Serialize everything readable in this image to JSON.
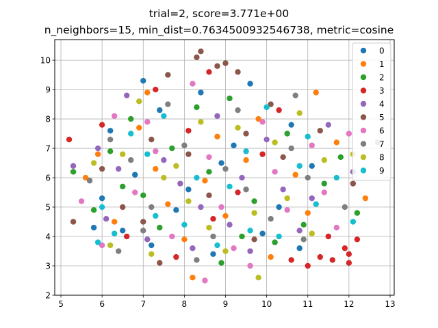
{
  "title_line1": "trial=2, score=3.771e+00",
  "title_line2": "n_neighbors=15, min_dist=0.7634500932546738, metric=cosine",
  "chart_data": {
    "type": "scatter",
    "title": "trial=2, score=3.771e+00\nn_neighbors=15, min_dist=0.7634500932546738, metric=cosine",
    "xlabel": "",
    "ylabel": "",
    "xlim": [
      4.85,
      13.1
    ],
    "ylim": [
      2.0,
      10.7
    ],
    "xticks": [
      5,
      6,
      7,
      8,
      9,
      10,
      11,
      12,
      13
    ],
    "yticks": [
      2,
      3,
      4,
      5,
      6,
      7,
      8,
      9,
      10
    ],
    "grid": true,
    "legend_position": "top-right",
    "series": [
      {
        "name": "0",
        "color": "#1f77b4",
        "points": [
          [
            7.0,
            9.3
          ],
          [
            6.2,
            7.6
          ],
          [
            5.8,
            4.3
          ],
          [
            6.5,
            4.2
          ],
          [
            7.4,
            8.3
          ],
          [
            8.1,
            5.6
          ],
          [
            9.6,
            9.2
          ],
          [
            10.3,
            5.0
          ],
          [
            6.8,
            6.1
          ],
          [
            8.7,
            3.4
          ],
          [
            10.8,
            3.6
          ],
          [
            9.2,
            7.1
          ],
          [
            7.8,
            4.9
          ],
          [
            6.0,
            5.3
          ],
          [
            11.1,
            6.4
          ],
          [
            8.4,
            8.9
          ],
          [
            9.9,
            4.1
          ],
          [
            7.2,
            3.7
          ],
          [
            10.6,
            7.8
          ],
          [
            8.9,
            6.5
          ]
        ]
      },
      {
        "name": "1",
        "color": "#ff7f0e",
        "points": [
          [
            11.2,
            8.9
          ],
          [
            12.4,
            5.3
          ],
          [
            5.6,
            6.0
          ],
          [
            8.2,
            2.6
          ],
          [
            7.1,
            8.9
          ],
          [
            9.5,
            6.6
          ],
          [
            6.3,
            4.5
          ],
          [
            10.1,
            3.3
          ],
          [
            8.8,
            7.4
          ],
          [
            7.6,
            5.1
          ],
          [
            11.7,
            7.2
          ],
          [
            6.9,
            7.7
          ],
          [
            9.0,
            4.7
          ],
          [
            10.7,
            6.1
          ],
          [
            8.0,
            3.9
          ],
          [
            5.9,
            6.8
          ],
          [
            9.8,
            8.0
          ],
          [
            7.3,
            6.3
          ],
          [
            11.0,
            4.8
          ],
          [
            8.5,
            5.9
          ]
        ]
      },
      {
        "name": "2",
        "color": "#2ca02c",
        "points": [
          [
            5.3,
            6.2
          ],
          [
            12.2,
            4.8
          ],
          [
            6.7,
            8.0
          ],
          [
            8.3,
            8.4
          ],
          [
            9.4,
            4.0
          ],
          [
            10.5,
            7.5
          ],
          [
            7.0,
            5.4
          ],
          [
            11.4,
            5.8
          ],
          [
            8.9,
            3.1
          ],
          [
            6.2,
            6.9
          ],
          [
            9.7,
            5.2
          ],
          [
            7.7,
            7.0
          ],
          [
            10.2,
            3.8
          ],
          [
            5.8,
            4.9
          ],
          [
            8.6,
            6.2
          ],
          [
            11.8,
            6.7
          ],
          [
            7.4,
            4.3
          ],
          [
            9.1,
            8.7
          ],
          [
            10.9,
            4.4
          ],
          [
            6.5,
            5.7
          ]
        ]
      },
      {
        "name": "3",
        "color": "#d62728",
        "points": [
          [
            5.2,
            7.3
          ],
          [
            12.0,
            3.1
          ],
          [
            11.6,
            3.2
          ],
          [
            12.2,
            3.9
          ],
          [
            11.9,
            3.6
          ],
          [
            11.3,
            3.3
          ],
          [
            12.0,
            3.4
          ],
          [
            7.3,
            9.0
          ],
          [
            8.6,
            9.6
          ],
          [
            6.0,
            7.8
          ],
          [
            9.3,
            5.5
          ],
          [
            10.6,
            3.2
          ],
          [
            7.8,
            3.3
          ],
          [
            11.5,
            4.0
          ],
          [
            8.1,
            7.6
          ],
          [
            9.9,
            6.8
          ],
          [
            6.6,
            4.0
          ],
          [
            10.3,
            8.3
          ],
          [
            8.7,
            4.6
          ],
          [
            11.0,
            3.0
          ]
        ]
      },
      {
        "name": "4",
        "color": "#9467bd",
        "points": [
          [
            5.3,
            6.4
          ],
          [
            6.6,
            8.8
          ],
          [
            8.4,
            5.0
          ],
          [
            9.6,
            3.5
          ],
          [
            11.1,
            5.3
          ],
          [
            7.5,
            6.6
          ],
          [
            10.0,
            7.3
          ],
          [
            6.1,
            4.6
          ],
          [
            8.8,
            8.1
          ],
          [
            12.1,
            6.2
          ],
          [
            7.1,
            3.9
          ],
          [
            9.4,
            6.0
          ],
          [
            10.8,
            4.2
          ],
          [
            5.9,
            7.0
          ],
          [
            8.2,
            3.6
          ],
          [
            11.5,
            7.8
          ],
          [
            7.9,
            5.8
          ],
          [
            9.1,
            4.4
          ],
          [
            6.4,
            6.3
          ],
          [
            10.4,
            5.6
          ]
        ]
      },
      {
        "name": "5",
        "color": "#8c564b",
        "points": [
          [
            8.4,
            10.3
          ],
          [
            9.0,
            9.9
          ],
          [
            8.3,
            10.1
          ],
          [
            7.6,
            9.5
          ],
          [
            5.3,
            4.5
          ],
          [
            8.8,
            9.8
          ],
          [
            9.3,
            9.6
          ],
          [
            7.2,
            7.3
          ],
          [
            10.4,
            6.7
          ],
          [
            6.5,
            5.0
          ],
          [
            11.3,
            7.6
          ],
          [
            8.6,
            5.4
          ],
          [
            9.7,
            3.9
          ],
          [
            7.0,
            4.5
          ],
          [
            10.1,
            8.5
          ],
          [
            6.0,
            6.3
          ],
          [
            12.1,
            5.8
          ],
          [
            8.1,
            6.8
          ],
          [
            9.5,
            7.5
          ],
          [
            7.4,
            3.1
          ]
        ]
      },
      {
        "name": "6",
        "color": "#e377c2",
        "points": [
          [
            6.0,
            3.7
          ],
          [
            8.5,
            2.5
          ],
          [
            9.6,
            3.0
          ],
          [
            12.0,
            7.5
          ],
          [
            11.1,
            7.1
          ],
          [
            7.3,
            6.9
          ],
          [
            8.9,
            5.0
          ],
          [
            10.5,
            4.9
          ],
          [
            6.3,
            8.1
          ],
          [
            9.9,
            7.9
          ],
          [
            7.7,
            4.0
          ],
          [
            5.5,
            5.2
          ],
          [
            11.7,
            4.3
          ],
          [
            8.2,
            9.2
          ],
          [
            10.2,
            6.2
          ],
          [
            6.8,
            5.5
          ],
          [
            9.2,
            3.6
          ],
          [
            7.1,
            7.9
          ],
          [
            11.4,
            5.5
          ],
          [
            8.6,
            6.7
          ]
        ]
      },
      {
        "name": "7",
        "color": "#7f7f7f",
        "points": [
          [
            12.7,
            7.2
          ],
          [
            10.7,
            8.8
          ],
          [
            6.4,
            3.5
          ],
          [
            8.0,
            7.1
          ],
          [
            9.5,
            5.6
          ],
          [
            7.2,
            5.0
          ],
          [
            11.0,
            6.0
          ],
          [
            5.7,
            5.9
          ],
          [
            8.7,
            4.0
          ],
          [
            10.1,
            4.6
          ],
          [
            7.6,
            8.5
          ],
          [
            9.3,
            8.3
          ],
          [
            6.7,
            6.6
          ],
          [
            11.9,
            5.0
          ],
          [
            8.3,
            3.2
          ],
          [
            10.6,
            7.0
          ],
          [
            7.0,
            4.2
          ],
          [
            9.0,
            6.3
          ],
          [
            6.2,
            7.3
          ],
          [
            10.9,
            3.9
          ]
        ]
      },
      {
        "name": "8",
        "color": "#bcbd22",
        "points": [
          [
            9.8,
            2.6
          ],
          [
            6.2,
            3.7
          ],
          [
            10.8,
            8.2
          ],
          [
            12.1,
            6.8
          ],
          [
            7.5,
            6.0
          ],
          [
            8.6,
            4.3
          ],
          [
            5.8,
            6.5
          ],
          [
            9.3,
            7.7
          ],
          [
            10.5,
            5.3
          ],
          [
            6.9,
            8.6
          ],
          [
            8.1,
            5.2
          ],
          [
            11.4,
            6.6
          ],
          [
            7.2,
            3.4
          ],
          [
            9.7,
            4.8
          ],
          [
            6.5,
            6.8
          ],
          [
            10.2,
            7.2
          ],
          [
            8.4,
            7.9
          ],
          [
            11.1,
            4.1
          ],
          [
            7.8,
            6.4
          ],
          [
            9.0,
            3.5
          ]
        ]
      },
      {
        "name": "9",
        "color": "#17becf",
        "points": [
          [
            12.1,
            4.5
          ],
          [
            10.8,
            6.4
          ],
          [
            6.3,
            4.1
          ],
          [
            8.0,
            4.4
          ],
          [
            9.5,
            6.9
          ],
          [
            7.1,
            6.8
          ],
          [
            11.2,
            5.1
          ],
          [
            6.0,
            5.0
          ],
          [
            9.1,
            5.7
          ],
          [
            10.3,
            4.0
          ],
          [
            7.5,
            8.1
          ],
          [
            8.8,
            3.7
          ],
          [
            11.7,
            6.0
          ],
          [
            6.7,
            7.5
          ],
          [
            10.0,
            8.4
          ],
          [
            8.3,
            6.0
          ],
          [
            9.6,
            4.2
          ],
          [
            7.3,
            4.7
          ],
          [
            11.0,
            7.4
          ],
          [
            5.9,
            3.8
          ]
        ]
      }
    ]
  }
}
